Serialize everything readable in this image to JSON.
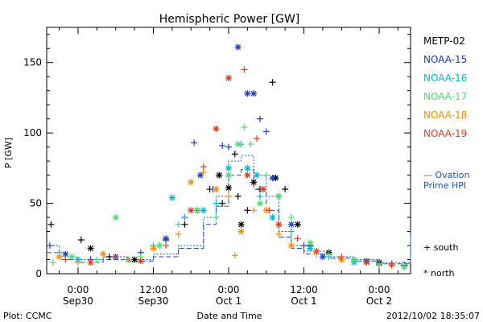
{
  "footer": {
    "left": "Plot: CCMC",
    "right": "2012/10/02 18:35:07"
  },
  "legend_symbols": {
    "south_label": "+ south",
    "north_label": "* north"
  },
  "ovation": {
    "line1": "— Ovation",
    "line2": "Prime HPI",
    "color": "#1a4fc8"
  },
  "chart_data": {
    "type": "scatter",
    "title": "Hemispheric Power [GW]",
    "xlabel": "Date and Time",
    "ylabel": "P [GW]",
    "ylim": [
      0,
      175
    ],
    "xlim_hours": [
      -5,
      53
    ],
    "y_ticks": [
      0,
      50,
      100,
      150
    ],
    "x_ticks": [
      {
        "h": 0,
        "time": "0:00",
        "date": "Sep30"
      },
      {
        "h": 12,
        "time": "12:00",
        "date": "Sep30"
      },
      {
        "h": 24,
        "time": "0:00",
        "date": "Oct 1"
      },
      {
        "h": 36,
        "time": "12:00",
        "date": "Oct 1"
      },
      {
        "h": 48,
        "time": "0:00",
        "date": "Oct 2"
      },
      {
        "h": 60,
        "time": "12:00",
        "date": "Oct 2"
      }
    ],
    "series": [
      {
        "name": "METP-02",
        "color": "#000000",
        "points": [
          [
            -4.3,
            35,
            "s"
          ],
          [
            0.5,
            24,
            "s"
          ],
          [
            2,
            18,
            "n"
          ],
          [
            5,
            12,
            "s"
          ],
          [
            9,
            10,
            "n"
          ],
          [
            14,
            24,
            "s"
          ],
          [
            17,
            35,
            "s"
          ],
          [
            19,
            45,
            "n"
          ],
          [
            21,
            60,
            "s"
          ],
          [
            22.5,
            70,
            "n"
          ],
          [
            23,
            50,
            "s"
          ],
          [
            24,
            61,
            "n"
          ],
          [
            25,
            85,
            "s"
          ],
          [
            25.5,
            55,
            "s"
          ],
          [
            26,
            35,
            "n"
          ],
          [
            27,
            45,
            "s"
          ],
          [
            28,
            65,
            "n"
          ],
          [
            29,
            60,
            "s"
          ],
          [
            31,
            136,
            "s"
          ],
          [
            31.5,
            68,
            "n"
          ],
          [
            33,
            60,
            "s"
          ],
          [
            35,
            35,
            "n"
          ],
          [
            37,
            20,
            "s"
          ],
          [
            40,
            15,
            "n"
          ],
          [
            44,
            10,
            "s"
          ],
          [
            48,
            8,
            "n"
          ],
          [
            52,
            6,
            "s"
          ],
          [
            56,
            5,
            "n"
          ],
          [
            62,
            10,
            "s"
          ],
          [
            64,
            6,
            "n"
          ]
        ]
      },
      {
        "name": "NOAA-15",
        "color": "#1a3cc8",
        "points": [
          [
            -4.5,
            20,
            "s"
          ],
          [
            -2,
            14,
            "n"
          ],
          [
            2,
            10,
            "s"
          ],
          [
            6,
            12,
            "n"
          ],
          [
            10,
            15,
            "s"
          ],
          [
            14,
            25,
            "n"
          ],
          [
            17,
            40,
            "s"
          ],
          [
            18.5,
            93,
            "s"
          ],
          [
            19.5,
            70,
            "n"
          ],
          [
            21.5,
            60,
            "s"
          ],
          [
            23,
            91,
            "s"
          ],
          [
            24,
            90,
            "s"
          ],
          [
            25.5,
            161,
            "n"
          ],
          [
            27,
            128,
            "n"
          ],
          [
            28,
            128,
            "n"
          ],
          [
            29,
            110,
            "s"
          ],
          [
            30,
            101,
            "s"
          ],
          [
            31,
            68,
            "n"
          ],
          [
            32,
            55,
            "s"
          ],
          [
            34,
            35,
            "n"
          ],
          [
            36,
            20,
            "s"
          ],
          [
            39,
            12,
            "n"
          ],
          [
            42,
            10,
            "s"
          ],
          [
            46,
            9,
            "n"
          ],
          [
            50,
            7,
            "s"
          ],
          [
            54,
            6,
            "n"
          ],
          [
            58,
            5,
            "s"
          ],
          [
            61,
            10,
            "s"
          ],
          [
            64,
            5,
            "n"
          ]
        ]
      },
      {
        "name": "NOAA-16",
        "color": "#00b8d8",
        "points": [
          [
            -3,
            15,
            "s"
          ],
          [
            0,
            10,
            "n"
          ],
          [
            4,
            14,
            "s"
          ],
          [
            8,
            10,
            "n"
          ],
          [
            12,
            20,
            "s"
          ],
          [
            15,
            54,
            "n"
          ],
          [
            17,
            40,
            "s"
          ],
          [
            20,
            45,
            "n"
          ],
          [
            22,
            50,
            "s"
          ],
          [
            24,
            75,
            "n"
          ],
          [
            26,
            92,
            "s"
          ],
          [
            27,
            75,
            "n"
          ],
          [
            28.5,
            70,
            "n"
          ],
          [
            29,
            55,
            "s"
          ],
          [
            31,
            40,
            "n"
          ],
          [
            34,
            30,
            "s"
          ],
          [
            37,
            18,
            "n"
          ],
          [
            40,
            12,
            "s"
          ],
          [
            44,
            8,
            "n"
          ],
          [
            48,
            6,
            "s"
          ],
          [
            52,
            5,
            "n"
          ],
          [
            56,
            4,
            "s"
          ],
          [
            60,
            12,
            "n"
          ],
          [
            63,
            6,
            "s"
          ]
        ]
      },
      {
        "name": "NOAA-17",
        "color": "#44e070",
        "points": [
          [
            -4,
            8,
            "s"
          ],
          [
            -1,
            12,
            "n"
          ],
          [
            3,
            10,
            "s"
          ],
          [
            6,
            40,
            "n"
          ],
          [
            10,
            12,
            "s"
          ],
          [
            13,
            20,
            "n"
          ],
          [
            16,
            35,
            "s"
          ],
          [
            19,
            45,
            "n"
          ],
          [
            22,
            40,
            "s"
          ],
          [
            24,
            70,
            "n"
          ],
          [
            25.5,
            92,
            "n"
          ],
          [
            26.5,
            104,
            "s"
          ],
          [
            27.5,
            92,
            "s"
          ],
          [
            29,
            50,
            "n"
          ],
          [
            30,
            70,
            "s"
          ],
          [
            32,
            55,
            "n"
          ],
          [
            34,
            40,
            "s"
          ],
          [
            37,
            22,
            "n"
          ],
          [
            40,
            14,
            "s"
          ],
          [
            44,
            10,
            "n"
          ],
          [
            48,
            7,
            "s"
          ],
          [
            52,
            5,
            "n"
          ],
          [
            56,
            4,
            "s"
          ],
          [
            60,
            8,
            "n"
          ],
          [
            63,
            5,
            "s"
          ]
        ]
      },
      {
        "name": "NOAA-18",
        "color": "#ff8c00",
        "points": [
          [
            -3,
            12,
            "n"
          ],
          [
            0,
            8,
            "s"
          ],
          [
            4,
            14,
            "n"
          ],
          [
            8,
            10,
            "s"
          ],
          [
            12,
            18,
            "n"
          ],
          [
            16,
            28,
            "s"
          ],
          [
            18,
            65,
            "n"
          ],
          [
            20,
            72,
            "s"
          ],
          [
            22,
            60,
            "n"
          ],
          [
            24,
            55,
            "s"
          ],
          [
            25,
            13,
            "s"
          ],
          [
            26,
            30,
            "n"
          ],
          [
            28,
            45,
            "s"
          ],
          [
            30,
            45,
            "n"
          ],
          [
            32,
            28,
            "s"
          ],
          [
            34,
            20,
            "n"
          ],
          [
            38,
            14,
            "s"
          ],
          [
            42,
            10,
            "n"
          ],
          [
            46,
            8,
            "s"
          ],
          [
            50,
            6,
            "n"
          ],
          [
            54,
            5,
            "s"
          ],
          [
            58,
            4,
            "n"
          ],
          [
            61,
            20,
            "s"
          ],
          [
            63,
            6,
            "n"
          ]
        ]
      },
      {
        "name": "NOAA-19",
        "color": "#e03c14",
        "points": [
          [
            -2,
            10,
            "s"
          ],
          [
            2,
            8,
            "n"
          ],
          [
            6,
            12,
            "s"
          ],
          [
            10,
            9,
            "n"
          ],
          [
            14,
            20,
            "s"
          ],
          [
            18,
            45,
            "n"
          ],
          [
            20,
            76,
            "s"
          ],
          [
            22,
            103,
            "n"
          ],
          [
            24,
            139,
            "n"
          ],
          [
            26.5,
            145,
            "s"
          ],
          [
            27,
            70,
            "n"
          ],
          [
            28.5,
            96,
            "s"
          ],
          [
            29.5,
            60,
            "n"
          ],
          [
            30.5,
            45,
            "s"
          ],
          [
            32,
            35,
            "n"
          ],
          [
            35,
            25,
            "s"
          ],
          [
            38,
            16,
            "n"
          ],
          [
            42,
            12,
            "s"
          ],
          [
            46,
            8,
            "n"
          ],
          [
            50,
            6,
            "s"
          ],
          [
            54,
            5,
            "n"
          ],
          [
            58,
            4,
            "s"
          ],
          [
            60.5,
            51,
            "n"
          ],
          [
            61.5,
            42,
            "n"
          ],
          [
            63,
            8,
            "s"
          ]
        ]
      }
    ],
    "ovation_hpi": {
      "north": [
        [
          -5,
          20
        ],
        [
          -3,
          12
        ],
        [
          0,
          10
        ],
        [
          4,
          12
        ],
        [
          8,
          10
        ],
        [
          12,
          14
        ],
        [
          16,
          20
        ],
        [
          20,
          40
        ],
        [
          22,
          55
        ],
        [
          24,
          80
        ],
        [
          26,
          84
        ],
        [
          28,
          70
        ],
        [
          30,
          55
        ],
        [
          32,
          30
        ],
        [
          34,
          20
        ],
        [
          36,
          16
        ],
        [
          40,
          12
        ],
        [
          44,
          10
        ],
        [
          48,
          8
        ],
        [
          52,
          8
        ],
        [
          56,
          10
        ],
        [
          58,
          30
        ],
        [
          60,
          28
        ],
        [
          61,
          20
        ],
        [
          62,
          15
        ],
        [
          64,
          28
        ],
        [
          66,
          14
        ]
      ],
      "south": [
        [
          -5,
          15
        ],
        [
          -3,
          10
        ],
        [
          0,
          8
        ],
        [
          4,
          10
        ],
        [
          8,
          9
        ],
        [
          12,
          12
        ],
        [
          16,
          18
        ],
        [
          20,
          35
        ],
        [
          22,
          48
        ],
        [
          24,
          70
        ],
        [
          26,
          74
        ],
        [
          28,
          60
        ],
        [
          30,
          45
        ],
        [
          32,
          26
        ],
        [
          34,
          18
        ],
        [
          36,
          14
        ],
        [
          40,
          11
        ],
        [
          44,
          9
        ],
        [
          48,
          7
        ],
        [
          52,
          7
        ],
        [
          56,
          9
        ],
        [
          58,
          24
        ],
        [
          60,
          22
        ],
        [
          61,
          16
        ],
        [
          62,
          12
        ],
        [
          64,
          22
        ],
        [
          66,
          12
        ]
      ]
    }
  }
}
